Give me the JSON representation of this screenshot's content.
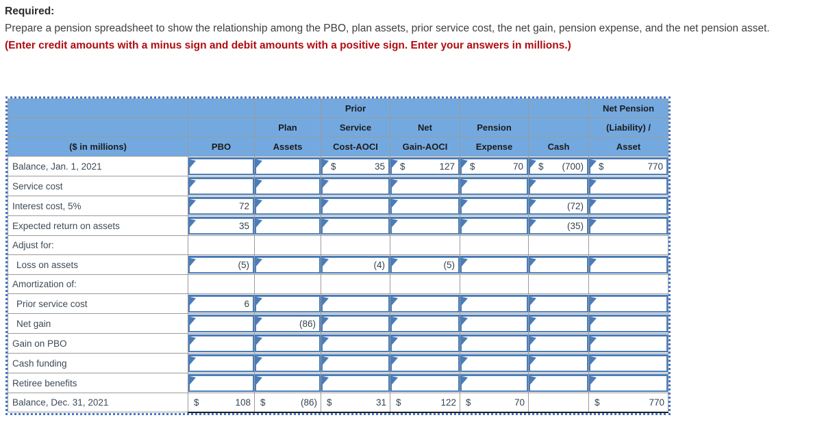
{
  "instructions": {
    "heading": "Required:",
    "body": "Prepare a pension spreadsheet to show the relationship among the PBO, plan assets, prior service cost, the net gain, pension expense, and the net pension asset. ",
    "emphasis": "(Enter credit amounts with a minus sign and debit amounts with a positive sign. Enter your answers in millions.)"
  },
  "colors": {
    "header_blue": "#74a9e0",
    "grid_gray": "#9a9a9a",
    "input_border_blue": "#4a7cb8",
    "selection_dotted_blue": "#4273c8",
    "emphasis_red": "#b00c11"
  },
  "table": {
    "columns": [
      "pbo",
      "plan_assets",
      "prior_service_cost_aoci",
      "net_gain_aoci",
      "pension_expense",
      "cash",
      "net_pension_asset"
    ],
    "header_rows": [
      [
        "",
        "",
        "",
        "Prior",
        "",
        "",
        "",
        "Net Pension"
      ],
      [
        "",
        "",
        "Plan",
        "Service",
        "Net",
        "Pension",
        "",
        "(Liability) /"
      ],
      [
        "($ in millions)",
        "PBO",
        "Assets",
        "Cost-AOCI",
        "Gain-AOCI",
        "Expense",
        "Cash",
        "Asset"
      ]
    ],
    "rows": [
      {
        "label": "Balance, Jan. 1, 2021",
        "type": "input",
        "cells": {
          "prior_service_cost_aoci": {
            "prefix": "$",
            "value": "35"
          },
          "net_gain_aoci": {
            "prefix": "$",
            "value": "127"
          },
          "pension_expense": {
            "prefix": "$",
            "value": "70"
          },
          "cash": {
            "prefix": "$",
            "value": "(700)"
          },
          "net_pension_asset": {
            "prefix": "$",
            "value": "770"
          }
        }
      },
      {
        "label": "Service cost",
        "type": "input",
        "cells": {}
      },
      {
        "label": "Interest cost, 5%",
        "type": "input",
        "cells": {
          "pbo": {
            "value": "72"
          },
          "cash": {
            "value": "(72)"
          }
        }
      },
      {
        "label": "Expected return on assets",
        "type": "input",
        "cells": {
          "pbo": {
            "value": "35"
          },
          "cash": {
            "value": "(35)"
          }
        }
      },
      {
        "label": "Adjust for:",
        "type": "plain",
        "cells": {}
      },
      {
        "label": "Loss on assets",
        "indent": true,
        "type": "input",
        "cells": {
          "pbo": {
            "value": "(5)"
          },
          "prior_service_cost_aoci": {
            "value": "(4)"
          },
          "net_gain_aoci": {
            "value": "(5)"
          }
        }
      },
      {
        "label": "Amortization of:",
        "type": "plain",
        "cells": {}
      },
      {
        "label": "Prior service cost",
        "indent": true,
        "type": "input",
        "cells": {
          "pbo": {
            "value": "6"
          }
        }
      },
      {
        "label": "Net gain",
        "indent": true,
        "type": "input",
        "cells": {
          "plan_assets": {
            "value": "(86)"
          }
        }
      },
      {
        "label": "Gain on PBO",
        "type": "input",
        "cells": {}
      },
      {
        "label": "Cash funding",
        "type": "input",
        "cells": {}
      },
      {
        "label": "Retiree benefits",
        "type": "input",
        "cells": {}
      },
      {
        "label": "Balance, Dec. 31, 2021",
        "type": "total",
        "cells": {
          "pbo": {
            "prefix": "$",
            "value": "108"
          },
          "plan_assets": {
            "prefix": "$",
            "value": "(86)"
          },
          "prior_service_cost_aoci": {
            "prefix": "$",
            "value": "31"
          },
          "net_gain_aoci": {
            "prefix": "$",
            "value": "122"
          },
          "pension_expense": {
            "prefix": "$",
            "value": "70"
          },
          "net_pension_asset": {
            "prefix": "$",
            "value": "770"
          }
        }
      }
    ]
  }
}
